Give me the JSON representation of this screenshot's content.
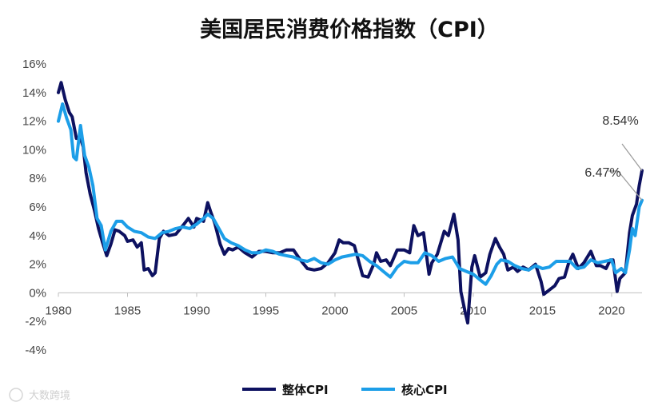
{
  "chart_data": {
    "type": "line",
    "title": "美国居民消费价格指数（CPI）",
    "xlabel": "",
    "ylabel": "",
    "xlim": [
      1980,
      2022.2
    ],
    "ylim": [
      -4,
      16
    ],
    "x_ticks": [
      1980,
      1985,
      1990,
      1995,
      2000,
      2005,
      2010,
      2015,
      2020
    ],
    "x_tick_labels": [
      "1980",
      "1985",
      "1990",
      "1995",
      "2000",
      "2005",
      "2010",
      "2015",
      "2020"
    ],
    "y_ticks": [
      -4,
      -2,
      0,
      2,
      4,
      6,
      8,
      10,
      12,
      14,
      16
    ],
    "y_tick_labels": [
      "-4%",
      "-2%",
      "0%",
      "2%",
      "4%",
      "6%",
      "8%",
      "10%",
      "12%",
      "14%",
      "16%"
    ],
    "grid": false,
    "legend_position": "bottom",
    "series": [
      {
        "name": "整体CPI",
        "color": "#0d1160",
        "points": [
          [
            1980.0,
            14.0
          ],
          [
            1980.2,
            14.7
          ],
          [
            1980.5,
            13.5
          ],
          [
            1980.8,
            12.6
          ],
          [
            1981.0,
            12.3
          ],
          [
            1981.3,
            10.8
          ],
          [
            1981.6,
            10.8
          ],
          [
            1981.8,
            10.2
          ],
          [
            1982.0,
            8.4
          ],
          [
            1982.3,
            6.9
          ],
          [
            1982.6,
            5.8
          ],
          [
            1982.9,
            4.5
          ],
          [
            1983.2,
            3.5
          ],
          [
            1983.5,
            2.6
          ],
          [
            1983.8,
            3.4
          ],
          [
            1984.1,
            4.4
          ],
          [
            1984.4,
            4.3
          ],
          [
            1984.8,
            4.0
          ],
          [
            1985.0,
            3.6
          ],
          [
            1985.4,
            3.7
          ],
          [
            1985.7,
            3.2
          ],
          [
            1986.0,
            3.5
          ],
          [
            1986.2,
            1.6
          ],
          [
            1986.5,
            1.7
          ],
          [
            1986.8,
            1.2
          ],
          [
            1987.0,
            1.4
          ],
          [
            1987.3,
            3.8
          ],
          [
            1987.6,
            4.3
          ],
          [
            1988.0,
            4.0
          ],
          [
            1988.5,
            4.1
          ],
          [
            1989.0,
            4.7
          ],
          [
            1989.4,
            5.2
          ],
          [
            1989.8,
            4.6
          ],
          [
            1990.0,
            5.2
          ],
          [
            1990.5,
            5.0
          ],
          [
            1990.8,
            6.3
          ],
          [
            1991.0,
            5.7
          ],
          [
            1991.3,
            4.9
          ],
          [
            1991.7,
            3.4
          ],
          [
            1992.0,
            2.7
          ],
          [
            1992.3,
            3.1
          ],
          [
            1992.6,
            3.0
          ],
          [
            1993.0,
            3.2
          ],
          [
            1993.5,
            2.8
          ],
          [
            1994.0,
            2.5
          ],
          [
            1994.5,
            2.9
          ],
          [
            1995.0,
            2.9
          ],
          [
            1995.5,
            2.8
          ],
          [
            1996.0,
            2.8
          ],
          [
            1996.5,
            3.0
          ],
          [
            1997.0,
            3.0
          ],
          [
            1997.5,
            2.3
          ],
          [
            1998.0,
            1.7
          ],
          [
            1998.5,
            1.6
          ],
          [
            1999.0,
            1.7
          ],
          [
            1999.5,
            2.1
          ],
          [
            2000.0,
            2.8
          ],
          [
            2000.3,
            3.7
          ],
          [
            2000.6,
            3.5
          ],
          [
            2001.0,
            3.5
          ],
          [
            2001.4,
            3.3
          ],
          [
            2001.8,
            1.9
          ],
          [
            2002.0,
            1.2
          ],
          [
            2002.4,
            1.1
          ],
          [
            2002.8,
            2.0
          ],
          [
            2003.0,
            2.8
          ],
          [
            2003.3,
            2.2
          ],
          [
            2003.7,
            2.3
          ],
          [
            2004.0,
            1.9
          ],
          [
            2004.5,
            3.0
          ],
          [
            2005.0,
            3.0
          ],
          [
            2005.4,
            2.8
          ],
          [
            2005.7,
            4.7
          ],
          [
            2006.0,
            4.0
          ],
          [
            2006.4,
            4.2
          ],
          [
            2006.8,
            1.3
          ],
          [
            2007.0,
            2.1
          ],
          [
            2007.4,
            2.7
          ],
          [
            2007.9,
            4.3
          ],
          [
            2008.2,
            4.0
          ],
          [
            2008.6,
            5.5
          ],
          [
            2008.9,
            3.7
          ],
          [
            2009.1,
            0.1
          ],
          [
            2009.4,
            -1.3
          ],
          [
            2009.6,
            -2.1
          ],
          [
            2009.9,
            1.8
          ],
          [
            2010.1,
            2.6
          ],
          [
            2010.5,
            1.1
          ],
          [
            2010.9,
            1.4
          ],
          [
            2011.2,
            2.7
          ],
          [
            2011.6,
            3.8
          ],
          [
            2011.9,
            3.2
          ],
          [
            2012.2,
            2.7
          ],
          [
            2012.5,
            1.6
          ],
          [
            2012.9,
            1.8
          ],
          [
            2013.2,
            1.5
          ],
          [
            2013.6,
            1.8
          ],
          [
            2014.0,
            1.6
          ],
          [
            2014.5,
            2.0
          ],
          [
            2014.9,
            0.8
          ],
          [
            2015.1,
            -0.1
          ],
          [
            2015.5,
            0.2
          ],
          [
            2015.9,
            0.5
          ],
          [
            2016.2,
            1.0
          ],
          [
            2016.6,
            1.1
          ],
          [
            2016.9,
            2.1
          ],
          [
            2017.2,
            2.7
          ],
          [
            2017.6,
            1.7
          ],
          [
            2018.0,
            2.1
          ],
          [
            2018.5,
            2.9
          ],
          [
            2018.9,
            1.9
          ],
          [
            2019.2,
            1.9
          ],
          [
            2019.6,
            1.7
          ],
          [
            2019.9,
            2.3
          ],
          [
            2020.1,
            2.3
          ],
          [
            2020.4,
            0.1
          ],
          [
            2020.6,
            1.0
          ],
          [
            2021.0,
            1.4
          ],
          [
            2021.3,
            4.2
          ],
          [
            2021.5,
            5.4
          ],
          [
            2021.8,
            6.2
          ],
          [
            2022.0,
            7.5
          ],
          [
            2022.2,
            8.54
          ]
        ]
      },
      {
        "name": "核心CPI",
        "color": "#1c9ee8",
        "points": [
          [
            1980.0,
            12.0
          ],
          [
            1980.3,
            13.2
          ],
          [
            1980.6,
            12.2
          ],
          [
            1980.9,
            11.4
          ],
          [
            1981.1,
            9.5
          ],
          [
            1981.3,
            9.3
          ],
          [
            1981.6,
            11.7
          ],
          [
            1981.9,
            9.6
          ],
          [
            1982.2,
            8.8
          ],
          [
            1982.5,
            7.5
          ],
          [
            1982.8,
            5.2
          ],
          [
            1983.1,
            4.7
          ],
          [
            1983.4,
            3.0
          ],
          [
            1983.8,
            4.3
          ],
          [
            1984.2,
            5.0
          ],
          [
            1984.6,
            5.0
          ],
          [
            1985.0,
            4.6
          ],
          [
            1985.5,
            4.3
          ],
          [
            1986.0,
            4.2
          ],
          [
            1986.5,
            3.9
          ],
          [
            1987.0,
            3.8
          ],
          [
            1987.5,
            4.2
          ],
          [
            1988.0,
            4.3
          ],
          [
            1988.5,
            4.5
          ],
          [
            1989.0,
            4.6
          ],
          [
            1989.5,
            4.5
          ],
          [
            1990.0,
            4.8
          ],
          [
            1990.5,
            5.2
          ],
          [
            1990.8,
            5.5
          ],
          [
            1991.2,
            5.2
          ],
          [
            1991.6,
            4.5
          ],
          [
            1992.0,
            3.8
          ],
          [
            1992.5,
            3.5
          ],
          [
            1993.0,
            3.3
          ],
          [
            1993.5,
            3.0
          ],
          [
            1994.0,
            2.8
          ],
          [
            1994.5,
            2.8
          ],
          [
            1995.0,
            3.0
          ],
          [
            1995.5,
            2.9
          ],
          [
            1996.0,
            2.7
          ],
          [
            1996.5,
            2.6
          ],
          [
            1997.0,
            2.5
          ],
          [
            1997.5,
            2.3
          ],
          [
            1998.0,
            2.2
          ],
          [
            1998.5,
            2.4
          ],
          [
            1999.0,
            2.1
          ],
          [
            1999.5,
            2.0
          ],
          [
            2000.0,
            2.3
          ],
          [
            2000.5,
            2.5
          ],
          [
            2001.0,
            2.6
          ],
          [
            2001.5,
            2.7
          ],
          [
            2002.0,
            2.6
          ],
          [
            2002.5,
            2.2
          ],
          [
            2003.0,
            1.9
          ],
          [
            2003.5,
            1.5
          ],
          [
            2004.0,
            1.1
          ],
          [
            2004.5,
            1.8
          ],
          [
            2005.0,
            2.2
          ],
          [
            2005.5,
            2.1
          ],
          [
            2006.0,
            2.1
          ],
          [
            2006.5,
            2.8
          ],
          [
            2007.0,
            2.6
          ],
          [
            2007.5,
            2.2
          ],
          [
            2008.0,
            2.4
          ],
          [
            2008.5,
            2.5
          ],
          [
            2009.0,
            1.7
          ],
          [
            2009.5,
            1.5
          ],
          [
            2010.0,
            1.3
          ],
          [
            2010.5,
            0.9
          ],
          [
            2010.9,
            0.6
          ],
          [
            2011.3,
            1.2
          ],
          [
            2011.7,
            2.0
          ],
          [
            2012.0,
            2.3
          ],
          [
            2012.5,
            2.2
          ],
          [
            2013.0,
            1.9
          ],
          [
            2013.5,
            1.7
          ],
          [
            2014.0,
            1.6
          ],
          [
            2014.5,
            1.9
          ],
          [
            2015.0,
            1.7
          ],
          [
            2015.5,
            1.8
          ],
          [
            2016.0,
            2.2
          ],
          [
            2016.5,
            2.2
          ],
          [
            2017.0,
            2.2
          ],
          [
            2017.5,
            1.7
          ],
          [
            2018.0,
            1.8
          ],
          [
            2018.5,
            2.3
          ],
          [
            2019.0,
            2.1
          ],
          [
            2019.5,
            2.2
          ],
          [
            2020.0,
            2.3
          ],
          [
            2020.3,
            1.4
          ],
          [
            2020.7,
            1.7
          ],
          [
            2021.0,
            1.4
          ],
          [
            2021.3,
            3.0
          ],
          [
            2021.5,
            4.5
          ],
          [
            2021.7,
            4.0
          ],
          [
            2022.0,
            6.0
          ],
          [
            2022.2,
            6.47
          ]
        ]
      }
    ],
    "annotations": [
      {
        "text": "8.54%",
        "x": 2022.2,
        "y": 8.54
      },
      {
        "text": "6.47%",
        "x": 2022.2,
        "y": 6.47
      }
    ],
    "watermark": "大数跨境"
  }
}
